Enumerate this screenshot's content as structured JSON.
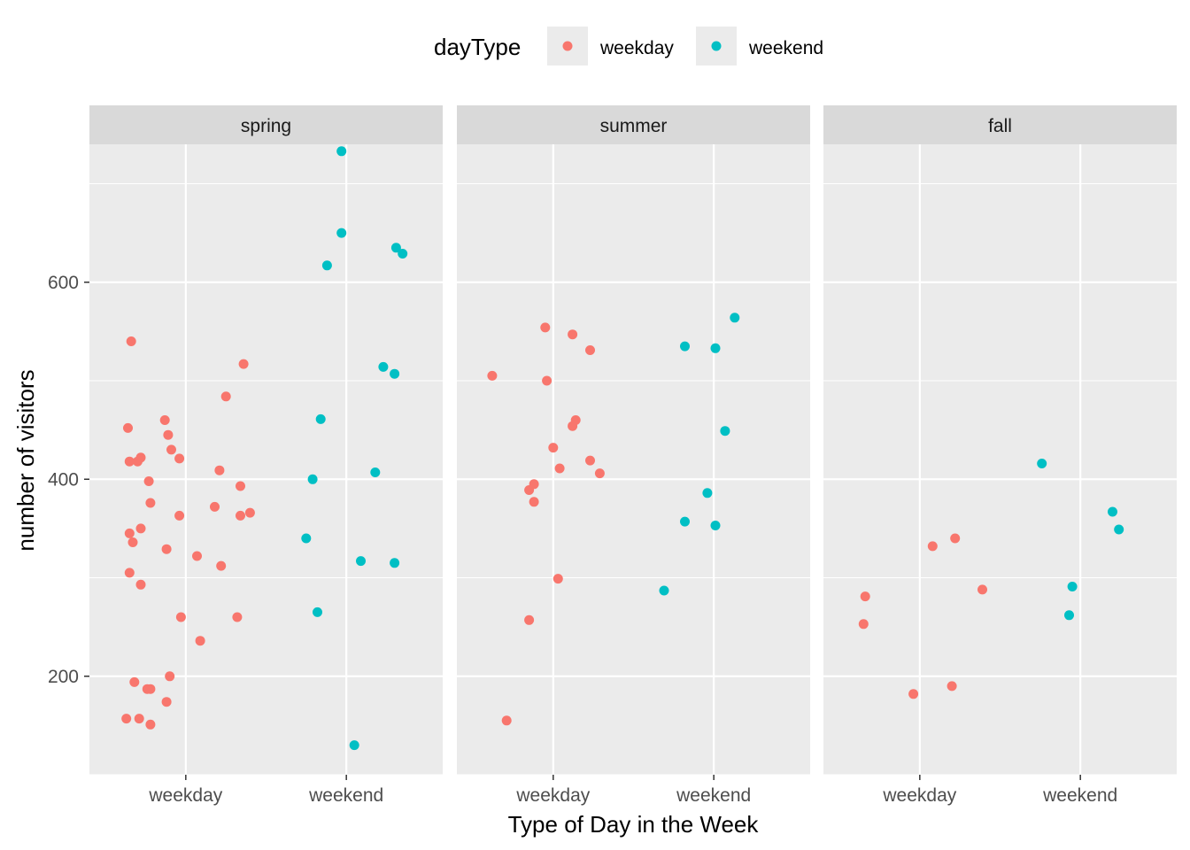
{
  "chart_data": {
    "type": "scatter",
    "facet_by": "season",
    "ylabel": "number of visitors",
    "xlabel": "Type of Day in the Week",
    "x_categories": [
      "weekday",
      "weekend"
    ],
    "ylim": [
      100,
      740
    ],
    "y_ticks": [
      200,
      400,
      600
    ],
    "legend": {
      "title": "dayType",
      "position": "top",
      "items": [
        {
          "label": "weekday",
          "color": "#F8766D"
        },
        {
          "label": "weekend",
          "color": "#00BFC4"
        }
      ]
    },
    "panels": [
      {
        "label": "spring",
        "points": [
          {
            "x": 0.66,
            "y": 540,
            "type": "weekday"
          },
          {
            "x": 0.64,
            "y": 452,
            "type": "weekday"
          },
          {
            "x": 0.65,
            "y": 418,
            "type": "weekday"
          },
          {
            "x": 0.7,
            "y": 418,
            "type": "weekday"
          },
          {
            "x": 0.72,
            "y": 422,
            "type": "weekday"
          },
          {
            "x": 0.77,
            "y": 398,
            "type": "weekday"
          },
          {
            "x": 0.78,
            "y": 376,
            "type": "weekday"
          },
          {
            "x": 0.65,
            "y": 345,
            "type": "weekday"
          },
          {
            "x": 0.67,
            "y": 336,
            "type": "weekday"
          },
          {
            "x": 0.72,
            "y": 350,
            "type": "weekday"
          },
          {
            "x": 0.65,
            "y": 305,
            "type": "weekday"
          },
          {
            "x": 0.72,
            "y": 293,
            "type": "weekday"
          },
          {
            "x": 0.68,
            "y": 194,
            "type": "weekday"
          },
          {
            "x": 0.63,
            "y": 157,
            "type": "weekday"
          },
          {
            "x": 0.71,
            "y": 157,
            "type": "weekday"
          },
          {
            "x": 0.76,
            "y": 187,
            "type": "weekday"
          },
          {
            "x": 0.78,
            "y": 187,
            "type": "weekday"
          },
          {
            "x": 0.78,
            "y": 151,
            "type": "weekday"
          },
          {
            "x": 0.88,
            "y": 174,
            "type": "weekday"
          },
          {
            "x": 0.9,
            "y": 200,
            "type": "weekday"
          },
          {
            "x": 0.87,
            "y": 460,
            "type": "weekday"
          },
          {
            "x": 0.89,
            "y": 445,
            "type": "weekday"
          },
          {
            "x": 0.91,
            "y": 430,
            "type": "weekday"
          },
          {
            "x": 0.96,
            "y": 421,
            "type": "weekday"
          },
          {
            "x": 0.96,
            "y": 363,
            "type": "weekday"
          },
          {
            "x": 0.88,
            "y": 329,
            "type": "weekday"
          },
          {
            "x": 0.97,
            "y": 260,
            "type": "weekday"
          },
          {
            "x": 1.07,
            "y": 322,
            "type": "weekday"
          },
          {
            "x": 1.09,
            "y": 236,
            "type": "weekday"
          },
          {
            "x": 1.18,
            "y": 372,
            "type": "weekday"
          },
          {
            "x": 1.21,
            "y": 409,
            "type": "weekday"
          },
          {
            "x": 1.22,
            "y": 312,
            "type": "weekday"
          },
          {
            "x": 1.25,
            "y": 484,
            "type": "weekday"
          },
          {
            "x": 1.32,
            "y": 260,
            "type": "weekday"
          },
          {
            "x": 1.34,
            "y": 393,
            "type": "weekday"
          },
          {
            "x": 1.34,
            "y": 363,
            "type": "weekday"
          },
          {
            "x": 1.36,
            "y": 517,
            "type": "weekday"
          },
          {
            "x": 1.4,
            "y": 366,
            "type": "weekday"
          },
          {
            "x": 1.97,
            "y": 733,
            "type": "weekend"
          },
          {
            "x": 1.97,
            "y": 650,
            "type": "weekend"
          },
          {
            "x": 1.88,
            "y": 617,
            "type": "weekend"
          },
          {
            "x": 1.84,
            "y": 461,
            "type": "weekend"
          },
          {
            "x": 1.79,
            "y": 400,
            "type": "weekend"
          },
          {
            "x": 1.75,
            "y": 340,
            "type": "weekend"
          },
          {
            "x": 1.82,
            "y": 265,
            "type": "weekend"
          },
          {
            "x": 2.05,
            "y": 130,
            "type": "weekend"
          },
          {
            "x": 2.09,
            "y": 317,
            "type": "weekend"
          },
          {
            "x": 2.18,
            "y": 407,
            "type": "weekend"
          },
          {
            "x": 2.23,
            "y": 514,
            "type": "weekend"
          },
          {
            "x": 2.3,
            "y": 507,
            "type": "weekend"
          },
          {
            "x": 2.31,
            "y": 635,
            "type": "weekend"
          },
          {
            "x": 2.35,
            "y": 629,
            "type": "weekend"
          },
          {
            "x": 2.3,
            "y": 315,
            "type": "weekend"
          }
        ]
      },
      {
        "label": "summer",
        "points": [
          {
            "x": 0.62,
            "y": 505,
            "type": "weekday"
          },
          {
            "x": 0.71,
            "y": 155,
            "type": "weekday"
          },
          {
            "x": 0.85,
            "y": 257,
            "type": "weekday"
          },
          {
            "x": 0.85,
            "y": 389,
            "type": "weekday"
          },
          {
            "x": 0.88,
            "y": 395,
            "type": "weekday"
          },
          {
            "x": 0.88,
            "y": 377,
            "type": "weekday"
          },
          {
            "x": 0.95,
            "y": 554,
            "type": "weekday"
          },
          {
            "x": 0.96,
            "y": 500,
            "type": "weekday"
          },
          {
            "x": 1.0,
            "y": 432,
            "type": "weekday"
          },
          {
            "x": 1.03,
            "y": 299,
            "type": "weekday"
          },
          {
            "x": 1.04,
            "y": 411,
            "type": "weekday"
          },
          {
            "x": 1.12,
            "y": 547,
            "type": "weekday"
          },
          {
            "x": 1.12,
            "y": 454,
            "type": "weekday"
          },
          {
            "x": 1.14,
            "y": 460,
            "type": "weekday"
          },
          {
            "x": 1.23,
            "y": 531,
            "type": "weekday"
          },
          {
            "x": 1.23,
            "y": 419,
            "type": "weekday"
          },
          {
            "x": 1.29,
            "y": 406,
            "type": "weekday"
          },
          {
            "x": 1.69,
            "y": 287,
            "type": "weekend"
          },
          {
            "x": 1.82,
            "y": 535,
            "type": "weekend"
          },
          {
            "x": 1.82,
            "y": 357,
            "type": "weekend"
          },
          {
            "x": 1.96,
            "y": 386,
            "type": "weekend"
          },
          {
            "x": 2.01,
            "y": 533,
            "type": "weekend"
          },
          {
            "x": 2.01,
            "y": 353,
            "type": "weekend"
          },
          {
            "x": 2.07,
            "y": 449,
            "type": "weekend"
          },
          {
            "x": 2.13,
            "y": 564,
            "type": "weekend"
          }
        ]
      },
      {
        "label": "fall",
        "points": [
          {
            "x": 0.66,
            "y": 281,
            "type": "weekday"
          },
          {
            "x": 0.65,
            "y": 253,
            "type": "weekday"
          },
          {
            "x": 0.96,
            "y": 182,
            "type": "weekday"
          },
          {
            "x": 1.08,
            "y": 332,
            "type": "weekday"
          },
          {
            "x": 1.2,
            "y": 190,
            "type": "weekday"
          },
          {
            "x": 1.22,
            "y": 340,
            "type": "weekday"
          },
          {
            "x": 1.39,
            "y": 288,
            "type": "weekday"
          },
          {
            "x": 1.76,
            "y": 416,
            "type": "weekend"
          },
          {
            "x": 1.93,
            "y": 262,
            "type": "weekend"
          },
          {
            "x": 1.95,
            "y": 291,
            "type": "weekend"
          },
          {
            "x": 2.2,
            "y": 367,
            "type": "weekend"
          },
          {
            "x": 2.24,
            "y": 349,
            "type": "weekend"
          }
        ]
      }
    ]
  }
}
